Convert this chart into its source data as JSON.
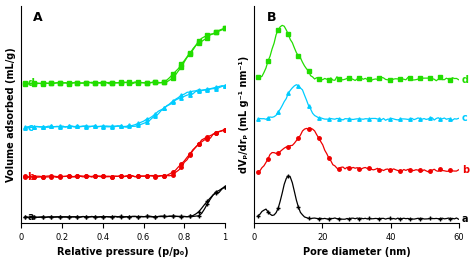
{
  "panel_A_label": "A",
  "panel_B_label": "B",
  "colors": {
    "a": "#000000",
    "b": "#ee0000",
    "c": "#00ccff",
    "d": "#22dd00"
  },
  "xlabel_A": "Relative pressure (p/p₀)",
  "ylabel_A": "Volume adsorbed (mL/g)",
  "xlabel_B": "Pore diameter (nm)",
  "ylabel_B": "dVₚ/drₚ (mL g⁻¹ nm⁻¹)",
  "xticks_A": [
    0,
    0.2,
    0.4,
    0.6,
    0.8,
    1.0
  ],
  "xticklabels_A": [
    "0",
    "0.2",
    "0.4",
    "0.6",
    "0.8",
    "1"
  ],
  "xticks_B": [
    0,
    20,
    40,
    60
  ],
  "xticklabels_B": [
    "0",
    "20",
    "40",
    "60"
  ]
}
